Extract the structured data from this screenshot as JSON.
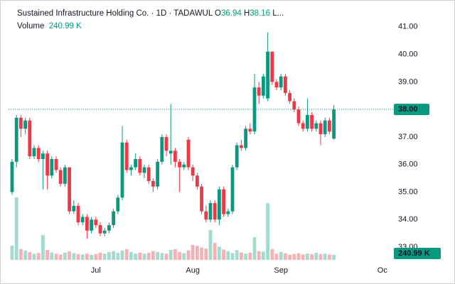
{
  "header": {
    "title": "Sustained Infrastructure Holding Co. · 1D · TADAWUL",
    "open_key": "O",
    "high_key": "H",
    "rest": "L...",
    "volume_key": "Volume",
    "volume_label": "240.99 K",
    "last_price_label": "38.00"
  },
  "chart_data": {
    "type": "candlestick",
    "categories": [
      null,
      null,
      null,
      null,
      null,
      null,
      null,
      null,
      null,
      null,
      null,
      null,
      null,
      null,
      null,
      null,
      null,
      null,
      null,
      "Jul",
      null,
      null,
      null,
      null,
      null,
      null,
      null,
      null,
      null,
      null,
      null,
      null,
      null,
      null,
      null,
      null,
      null,
      null,
      null,
      null,
      null,
      "Aug",
      null,
      null,
      null,
      null,
      null,
      null,
      null,
      null,
      null,
      null,
      null,
      null,
      null,
      null,
      null,
      null,
      null,
      null,
      null,
      "Sep",
      null,
      null,
      null,
      null,
      null,
      null,
      null,
      null,
      null,
      null,
      null,
      null,
      null,
      null,
      null,
      null,
      null,
      null,
      null,
      null,
      null,
      null,
      "Oc"
    ],
    "open": [
      35.0,
      36.1,
      37.7,
      37.3,
      37.6,
      36.3,
      36.6,
      36.2,
      36.4,
      35.6,
      36.2,
      35.8,
      35.3,
      35.9,
      34.3,
      34.5,
      33.9,
      34.1,
      33.6,
      34.0,
      33.8,
      33.5,
      33.6,
      33.8,
      34.3,
      34.8,
      36.8,
      35.8,
      35.9,
      36.2,
      35.7,
      35.9,
      35.4,
      35.2,
      36.1,
      37.0,
      36.4,
      36.5,
      36.1,
      35.9,
      36.9,
      35.9,
      35.6,
      35.2,
      34.3,
      34.0,
      34.6,
      34.0,
      35.1,
      34.2,
      34.3,
      35.9,
      36.7,
      36.6,
      37.3,
      37.2,
      38.8,
      38.5,
      38.4,
      40.1,
      39.0,
      38.8,
      39.2,
      38.6,
      38.3,
      38.0,
      37.5,
      37.3,
      37.8,
      37.3,
      37.5,
      37.1,
      37.6,
      36.94,
      null,
      null,
      null,
      null,
      null,
      null,
      null,
      null,
      null,
      null,
      null
    ],
    "high": [
      36.2,
      37.8,
      37.8,
      37.7,
      37.7,
      36.7,
      36.7,
      36.5,
      36.5,
      36.3,
      36.3,
      35.9,
      36.0,
      35.9,
      34.7,
      34.6,
      34.2,
      34.2,
      34.1,
      34.1,
      33.9,
      33.7,
      33.9,
      34.4,
      34.9,
      37.4,
      36.9,
      36.0,
      36.4,
      36.3,
      36.0,
      36.0,
      35.5,
      36.2,
      37.1,
      37.1,
      38.2,
      36.6,
      36.2,
      36.1,
      37.0,
      36.0,
      35.7,
      35.3,
      34.5,
      34.7,
      34.7,
      35.2,
      35.2,
      34.4,
      36.0,
      36.8,
      36.9,
      37.4,
      37.5,
      39.3,
      39.0,
      39.3,
      40.8,
      40.1,
      39.1,
      39.3,
      39.3,
      38.7,
      38.4,
      38.1,
      37.6,
      38.4,
      37.9,
      37.6,
      37.6,
      37.7,
      37.7,
      38.16,
      null,
      null,
      null,
      null,
      null,
      null,
      null,
      null,
      null,
      null,
      null
    ],
    "low": [
      34.9,
      35.9,
      37.0,
      37.1,
      36.2,
      36.2,
      36.1,
      35.1,
      35.1,
      35.5,
      35.7,
      35.2,
      35.2,
      34.2,
      34.2,
      33.8,
      33.8,
      33.3,
      33.5,
      33.7,
      33.4,
      33.4,
      33.5,
      33.7,
      34.2,
      34.7,
      35.7,
      35.6,
      35.8,
      35.6,
      35.5,
      35.3,
      35.0,
      35.1,
      36.0,
      36.3,
      36.0,
      35.9,
      35.0,
      35.8,
      35.8,
      35.4,
      35.1,
      34.2,
      33.9,
      33.9,
      33.9,
      33.8,
      34.1,
      34.1,
      34.2,
      35.8,
      36.5,
      36.5,
      37.1,
      37.1,
      38.2,
      38.4,
      38.3,
      38.9,
      38.7,
      38.7,
      38.5,
      38.2,
      37.9,
      37.4,
      37.2,
      37.2,
      37.2,
      37.2,
      36.7,
      37.0,
      37.1,
      36.9,
      null,
      null,
      null,
      null,
      null,
      null,
      null,
      null,
      null,
      null,
      null
    ],
    "close": [
      36.1,
      37.7,
      37.3,
      37.6,
      36.3,
      36.6,
      36.2,
      36.4,
      35.6,
      36.2,
      35.8,
      35.3,
      35.9,
      34.3,
      34.5,
      33.9,
      34.1,
      33.6,
      34.0,
      33.8,
      33.5,
      33.6,
      33.8,
      34.3,
      34.8,
      36.8,
      35.8,
      35.9,
      36.2,
      35.7,
      35.9,
      35.4,
      35.2,
      36.1,
      37.0,
      36.5,
      36.5,
      36.1,
      35.9,
      36.0,
      35.9,
      35.6,
      35.2,
      34.3,
      34.0,
      34.6,
      34.0,
      35.1,
      34.2,
      34.3,
      35.9,
      36.7,
      36.6,
      37.3,
      37.2,
      38.8,
      38.5,
      39.2,
      40.1,
      39.0,
      38.8,
      39.2,
      38.6,
      38.3,
      38.0,
      37.5,
      37.3,
      37.8,
      37.3,
      37.5,
      37.1,
      37.6,
      37.2,
      38.0,
      null,
      null,
      null,
      null,
      null,
      null,
      null,
      null,
      null,
      null,
      null
    ],
    "volume": [
      690,
      3030,
      520,
      450,
      380,
      300,
      340,
      1200,
      480,
      360,
      300,
      260,
      350,
      410,
      330,
      280,
      260,
      300,
      240,
      280,
      350,
      300,
      380,
      420,
      340,
      460,
      520,
      380,
      300,
      350,
      300,
      340,
      420,
      380,
      330,
      300,
      480,
      520,
      380,
      320,
      460,
      720,
      680,
      600,
      540,
      1450,
      820,
      640,
      500,
      420,
      330,
      470,
      360,
      300,
      350,
      1100,
      420,
      400,
      2750,
      520,
      300,
      380,
      320,
      250,
      280,
      320,
      260,
      300,
      270,
      340,
      280,
      300,
      260,
      240.99,
      null,
      null,
      null,
      null,
      null,
      null,
      null,
      null,
      null,
      null,
      null
    ],
    "up_color": "#089981",
    "down_color": "#f23645",
    "up_volume_color": "#a3dbd0",
    "down_volume_color": "#f7b0b4",
    "ylim": [
      32.6,
      41.46
    ],
    "yticks": [
      {
        "value": 33,
        "label": "33.00"
      },
      {
        "value": 34,
        "label": "34.00"
      },
      {
        "value": 35,
        "label": "35.00"
      },
      {
        "value": 36,
        "label": "36.00"
      },
      {
        "value": 37,
        "label": "37.00"
      },
      {
        "value": 38,
        "label": "38.00"
      },
      {
        "value": 39,
        "label": "39.00"
      },
      {
        "value": 40,
        "label": "40.00"
      },
      {
        "value": 41,
        "label": "41.00"
      }
    ],
    "grid": false
  }
}
